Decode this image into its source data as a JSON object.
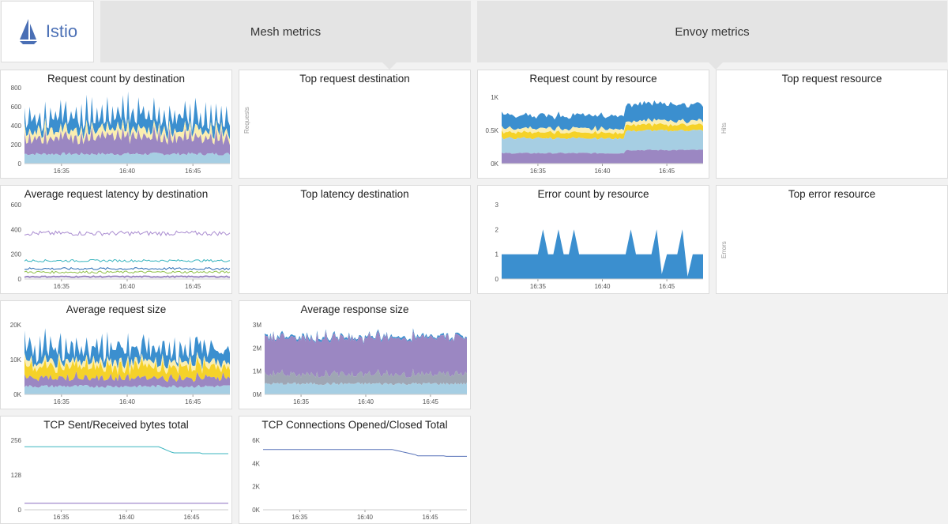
{
  "app": {
    "logo_text": "Istio"
  },
  "sections": [
    {
      "label": "Mesh metrics"
    },
    {
      "label": "Envoy metrics"
    }
  ],
  "widgets": {
    "req_count_dest": {
      "title": "Request count by destination",
      "yticks": [
        "800",
        "600",
        "400",
        "200",
        "0"
      ],
      "xticks": [
        "16:35",
        "16:40",
        "16:45"
      ]
    },
    "top_req_dest": {
      "title": "Top request destination",
      "side_label": "Requests"
    },
    "req_count_res": {
      "title": "Request count by resource",
      "yticks": [
        "1K",
        "0.5K",
        "0K"
      ],
      "xticks": [
        "16:35",
        "16:40",
        "16:45"
      ]
    },
    "top_req_res": {
      "title": "Top request resource",
      "side_label": "Hits"
    },
    "avg_latency_dest": {
      "title": "Average request latency by destination",
      "yticks": [
        "600",
        "400",
        "200",
        "0"
      ],
      "xticks": [
        "16:35",
        "16:40",
        "16:45"
      ]
    },
    "top_latency_dest": {
      "title": "Top latency destination"
    },
    "err_count_res": {
      "title": "Error count by resource",
      "yticks": [
        "3",
        "2",
        "1",
        "0"
      ],
      "xticks": [
        "16:35",
        "16:40",
        "16:45"
      ]
    },
    "top_err_res": {
      "title": "Top error resource",
      "side_label": "Errors"
    },
    "avg_req_size": {
      "title": "Average request size",
      "yticks": [
        "20K",
        "10K",
        "0K"
      ],
      "xticks": [
        "16:35",
        "16:40",
        "16:45"
      ]
    },
    "avg_resp_size": {
      "title": "Average response size",
      "yticks": [
        "3M",
        "2M",
        "1M",
        "0M"
      ],
      "xticks": [
        "16:35",
        "16:40",
        "16:45"
      ]
    },
    "tcp_bytes": {
      "title": "TCP Sent/Received bytes total",
      "yticks": [
        "256",
        "128",
        "0"
      ],
      "xticks": [
        "16:35",
        "16:40",
        "16:45"
      ]
    },
    "tcp_conns": {
      "title": "TCP Connections Opened/Closed Total",
      "yticks": [
        "6K",
        "4K",
        "2K",
        "0K"
      ],
      "xticks": [
        "16:35",
        "16:40",
        "16:45"
      ]
    }
  },
  "colors": {
    "blue": "#3b8fcf",
    "light_blue": "#a6cee3",
    "yellow": "#f5d229",
    "pale_yellow": "#fbeeb0",
    "purple": "#9b87c2",
    "teal": "#3bb5bf",
    "grey_cell": "#cfcfcf"
  }
}
